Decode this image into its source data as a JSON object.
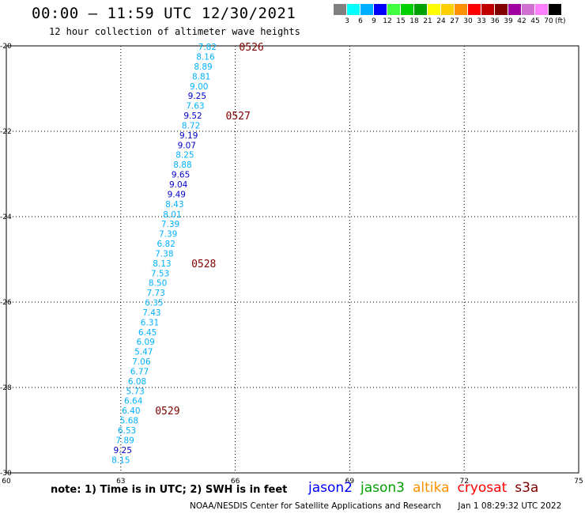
{
  "header": {
    "title": "00:00 — 11:59 UTC 12/30/2021",
    "subtitle": "12 hour collection of altimeter wave heights"
  },
  "colorbar": {
    "unit": "(ft)",
    "bins": [
      {
        "label": "3",
        "color": "#808080"
      },
      {
        "label": "6",
        "color": "#00ffff"
      },
      {
        "label": "9",
        "color": "#00b0ff"
      },
      {
        "label": "12",
        "color": "#0000ff"
      },
      {
        "label": "15",
        "color": "#40ff40"
      },
      {
        "label": "18",
        "color": "#00d000"
      },
      {
        "label": "21",
        "color": "#00a000"
      },
      {
        "label": "24",
        "color": "#ffff00"
      },
      {
        "label": "27",
        "color": "#ffd000"
      },
      {
        "label": "30",
        "color": "#ff9000"
      },
      {
        "label": "33",
        "color": "#ff0000"
      },
      {
        "label": "36",
        "color": "#c00000"
      },
      {
        "label": "39",
        "color": "#800000"
      },
      {
        "label": "42",
        "color": "#a000a0"
      },
      {
        "label": "45",
        "color": "#d070d0"
      },
      {
        "label": "70",
        "color": "#ff80ff"
      },
      {
        "label": "",
        "color": "#000000"
      }
    ]
  },
  "map": {
    "lon_ticks": [
      "60",
      "63",
      "66",
      "69",
      "72",
      "75"
    ],
    "lat_ticks": [
      "-20",
      "-22",
      "-24",
      "-26",
      "-28",
      "-30"
    ],
    "point_colors": {
      "light": "#00b0ff",
      "dark": "#0000cc"
    },
    "time_color": "#800000",
    "points": [
      {
        "label": "7.82",
        "lon": 65.27,
        "lat": -20.02,
        "c": "light"
      },
      {
        "label": "8.16",
        "lon": 65.22,
        "lat": -20.25,
        "c": "light"
      },
      {
        "label": "8.89",
        "lon": 65.16,
        "lat": -20.48,
        "c": "light"
      },
      {
        "label": "8.81",
        "lon": 65.11,
        "lat": -20.71,
        "c": "light"
      },
      {
        "label": "9.00",
        "lon": 65.05,
        "lat": -20.94,
        "c": "light"
      },
      {
        "label": "9.25",
        "lon": 65.0,
        "lat": -21.17,
        "c": "dark"
      },
      {
        "label": "7.63",
        "lon": 64.95,
        "lat": -21.4,
        "c": "light"
      },
      {
        "label": "9.52",
        "lon": 64.89,
        "lat": -21.63,
        "c": "dark"
      },
      {
        "label": "8.72",
        "lon": 64.84,
        "lat": -21.86,
        "c": "light"
      },
      {
        "label": "9.19",
        "lon": 64.78,
        "lat": -22.09,
        "c": "dark"
      },
      {
        "label": "9.07",
        "lon": 64.73,
        "lat": -22.32,
        "c": "dark"
      },
      {
        "label": "8.25",
        "lon": 64.68,
        "lat": -22.55,
        "c": "light"
      },
      {
        "label": "8.88",
        "lon": 64.62,
        "lat": -22.78,
        "c": "light"
      },
      {
        "label": "9.65",
        "lon": 64.57,
        "lat": -23.01,
        "c": "dark"
      },
      {
        "label": "9.04",
        "lon": 64.51,
        "lat": -23.24,
        "c": "dark"
      },
      {
        "label": "9.49",
        "lon": 64.46,
        "lat": -23.47,
        "c": "dark"
      },
      {
        "label": "8.43",
        "lon": 64.41,
        "lat": -23.7,
        "c": "light"
      },
      {
        "label": "8.01",
        "lon": 64.35,
        "lat": -23.94,
        "c": "light"
      },
      {
        "label": "7.39",
        "lon": 64.3,
        "lat": -24.17,
        "c": "light"
      },
      {
        "label": "7.39",
        "lon": 64.24,
        "lat": -24.4,
        "c": "light"
      },
      {
        "label": "6.82",
        "lon": 64.19,
        "lat": -24.63,
        "c": "light"
      },
      {
        "label": "7.38",
        "lon": 64.14,
        "lat": -24.86,
        "c": "light"
      },
      {
        "label": "8.13",
        "lon": 64.08,
        "lat": -25.09,
        "c": "light"
      },
      {
        "label": "7.53",
        "lon": 64.03,
        "lat": -25.32,
        "c": "light"
      },
      {
        "label": "8.50",
        "lon": 63.97,
        "lat": -25.55,
        "c": "light"
      },
      {
        "label": "7.73",
        "lon": 63.92,
        "lat": -25.78,
        "c": "light"
      },
      {
        "label": "6.35",
        "lon": 63.87,
        "lat": -26.01,
        "c": "light"
      },
      {
        "label": "7.43",
        "lon": 63.81,
        "lat": -26.24,
        "c": "light"
      },
      {
        "label": "6.31",
        "lon": 63.76,
        "lat": -26.47,
        "c": "light"
      },
      {
        "label": "6.45",
        "lon": 63.7,
        "lat": -26.7,
        "c": "light"
      },
      {
        "label": "6.09",
        "lon": 63.65,
        "lat": -26.93,
        "c": "light"
      },
      {
        "label": "5.47",
        "lon": 63.6,
        "lat": -27.16,
        "c": "light"
      },
      {
        "label": "7.06",
        "lon": 63.54,
        "lat": -27.39,
        "c": "light"
      },
      {
        "label": "6.77",
        "lon": 63.49,
        "lat": -27.62,
        "c": "light"
      },
      {
        "label": "6.08",
        "lon": 63.43,
        "lat": -27.85,
        "c": "light"
      },
      {
        "label": "5.73",
        "lon": 63.38,
        "lat": -28.08,
        "c": "light"
      },
      {
        "label": "6.64",
        "lon": 63.33,
        "lat": -28.31,
        "c": "light"
      },
      {
        "label": "6.40",
        "lon": 63.27,
        "lat": -28.54,
        "c": "light"
      },
      {
        "label": "5.68",
        "lon": 63.22,
        "lat": -28.77,
        "c": "light"
      },
      {
        "label": "6.53",
        "lon": 63.16,
        "lat": -29.0,
        "c": "light"
      },
      {
        "label": "7.89",
        "lon": 63.11,
        "lat": -29.23,
        "c": "light"
      },
      {
        "label": "9.25",
        "lon": 63.05,
        "lat": -29.46,
        "c": "dark"
      },
      {
        "label": "8.15",
        "lon": 63.0,
        "lat": -29.69,
        "c": "light"
      }
    ],
    "times": [
      {
        "label": "0526",
        "lon": 66.1,
        "lat": -20.02
      },
      {
        "label": "0527",
        "lon": 65.75,
        "lat": -21.63
      },
      {
        "label": "0528",
        "lon": 64.85,
        "lat": -25.09
      },
      {
        "label": "0529",
        "lon": 63.9,
        "lat": -28.54
      }
    ]
  },
  "footer": {
    "note": "note: 1) Time is in UTC; 2) SWH is in feet",
    "legend": [
      {
        "label": "jason2",
        "color": "#0000ff"
      },
      {
        "label": "jason3",
        "color": "#00a000"
      },
      {
        "label": "altika",
        "color": "#ff9000"
      },
      {
        "label": "cryosat",
        "color": "#ff0000"
      },
      {
        "label": "s3a",
        "color": "#800000"
      }
    ],
    "credit": "NOAA/NESDIS Center for Satellite Applications and Research",
    "timestamp": "Jan  1 08:29:32 UTC 2022"
  }
}
